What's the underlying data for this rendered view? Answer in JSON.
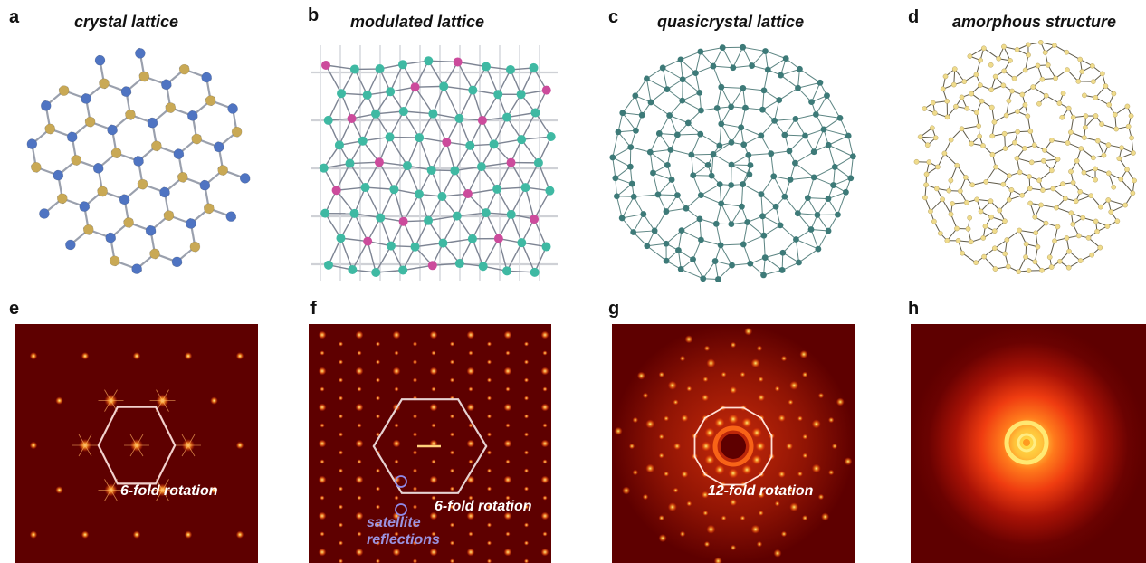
{
  "top_row": [
    {
      "letter": "a",
      "title": "crystal lattice"
    },
    {
      "letter": "b",
      "title": "modulated lattice"
    },
    {
      "letter": "c",
      "title": "quasicrystal lattice"
    },
    {
      "letter": "d",
      "title": "amorphous structure"
    }
  ],
  "bottom_row": [
    {
      "letter": "e",
      "annotation": "6-fold rotation"
    },
    {
      "letter": "f",
      "annotation": "6-fold rotation",
      "extra_line1": "satellite",
      "extra_line2": "reflections"
    },
    {
      "letter": "g",
      "annotation": "12-fold rotation"
    },
    {
      "letter": "h",
      "annotation": ""
    }
  ],
  "colors": {
    "crystal_blue": "#4f74c2",
    "crystal_gold": "#c9a955",
    "bond_gray": "#9aa0ad",
    "modulated_teal": "#3fb9a3",
    "modulated_magenta": "#cc4b9c",
    "quasi_teal": "#3d7a78",
    "amorphous_node": "#efdb8c",
    "amorphous_bond": "#5f5a48",
    "diffraction_bg": "#5e0000",
    "diffraction_spot": "#ffd24a",
    "satellite_circle": "#8f89e8"
  }
}
